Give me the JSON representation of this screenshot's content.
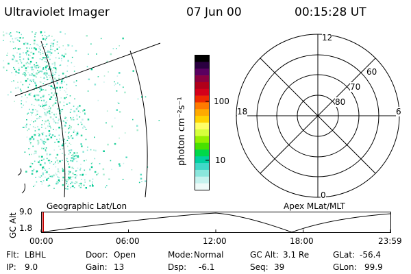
{
  "header": {
    "instrument": "Ultraviolet Imager",
    "date": "07 Jun 00",
    "time": "00:15:28 UT"
  },
  "colorbar": {
    "unit_label": "photon cm⁻²s⁻¹",
    "ticks": [
      "100",
      "10"
    ],
    "colors": [
      "#000000",
      "#2a0040",
      "#5a0060",
      "#8a0040",
      "#b0001a",
      "#d4001a",
      "#ee2a00",
      "#ff7a00",
      "#ffaa00",
      "#ffd300",
      "#ffff66",
      "#d6ff3c",
      "#96f000",
      "#48e000",
      "#00d84a",
      "#00d0a0",
      "#40d8c8",
      "#8ae6dc",
      "#c6f2ee",
      "#eefaf8"
    ]
  },
  "polar": {
    "mlt_labels": {
      "top": "12",
      "left": "18",
      "right": "6",
      "bottom": "0"
    },
    "lat_labels": [
      "60",
      "70",
      "80"
    ]
  },
  "panel_labels": {
    "left": "Geographic Lat/Lon",
    "right": "Apex MLat/MLT"
  },
  "altitude_plot": {
    "ylabel": "GC Alt",
    "y_ticks": [
      "9.0",
      "1.8"
    ],
    "x_ticks": [
      "00:00",
      "06:00",
      "12:00",
      "18:00",
      "23:59"
    ],
    "marker_color": "#c00000"
  },
  "info": {
    "row1": [
      {
        "label": "Flt:",
        "value": "LBHL"
      },
      {
        "label": "Door:",
        "value": "Open"
      },
      {
        "label": "Mode:",
        "value": "Normal"
      },
      {
        "label": "GC Alt:",
        "value": "3.1 Re"
      },
      {
        "label": "GLat:",
        "value": "-56.4"
      }
    ],
    "row2": [
      {
        "label": "IP:",
        "value": "9.0"
      },
      {
        "label": "Gain:",
        "value": "13"
      },
      {
        "label": "Dsp:",
        "value": "-6.1"
      },
      {
        "label": "Seq:",
        "value": "39"
      },
      {
        "label": "GLon:",
        "value": "99.9"
      }
    ]
  }
}
